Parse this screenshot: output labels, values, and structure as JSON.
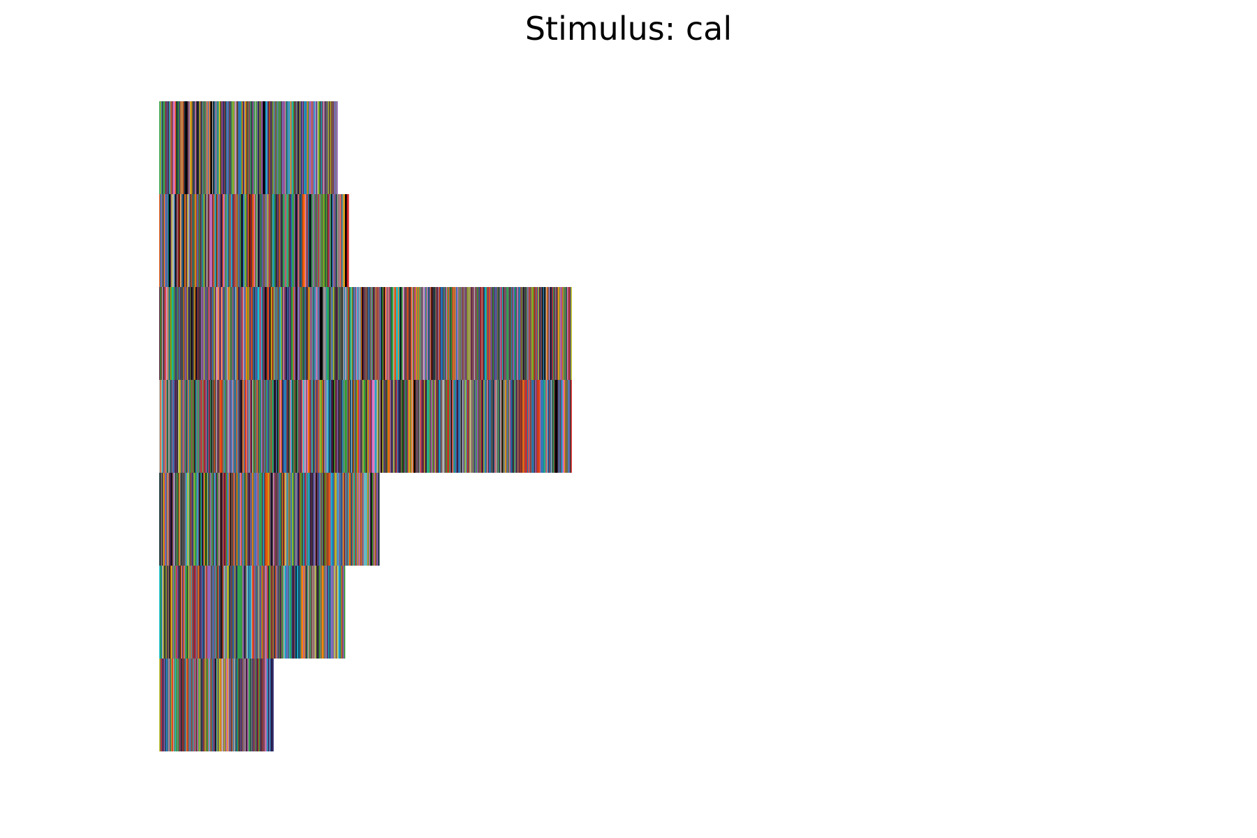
{
  "chart_data": {
    "type": "heatmap",
    "title": "Stimulus: cal",
    "xlabel": "",
    "ylabel": "",
    "axes_visible": false,
    "grid": false,
    "legend": "none",
    "row_count": 7,
    "row_lengths": [
      192,
      204,
      444,
      444,
      237,
      200,
      123
    ],
    "color_palette": [
      "#1f77b4",
      "#d62728",
      "#2ca02c",
      "#9467bd",
      "#8c564b",
      "#e377c2",
      "#7f7f7f",
      "#bcbd22",
      "#17becf",
      "#ff7f0e",
      "#000000",
      "#393b79",
      "#637939",
      "#843c39",
      "#7b4173",
      "#3182bd",
      "#31a354",
      "#756bb1",
      "#636363",
      "#e6550d",
      "#2b1a4a",
      "#1c3a3a",
      "#5a1f3b",
      "#b5b5b5",
      "#3a3a3a"
    ]
  }
}
